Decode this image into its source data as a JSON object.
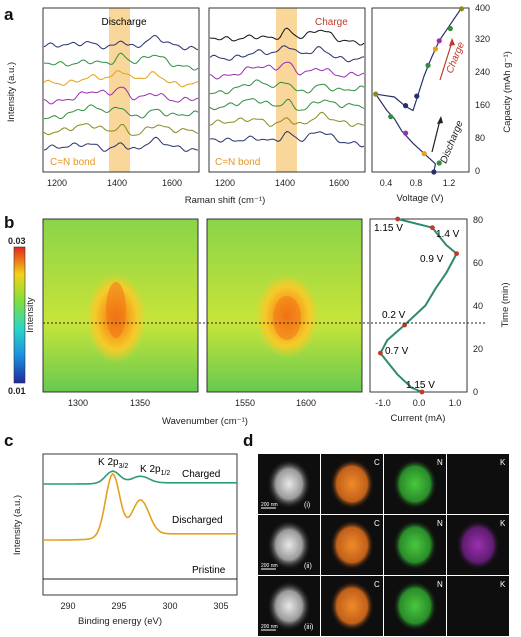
{
  "panels": {
    "a": {
      "label": "a",
      "discharge_title": "Discharge",
      "charge_title": "Charge",
      "bond_label": "C=N bond",
      "ylabel": "Intensity (a.u.)",
      "xlabel": "Raman shift (cm⁻¹)",
      "x_ticks": [
        "1200",
        "1400",
        "1600"
      ],
      "voltage_xlabel": "Voltage (V)",
      "voltage_x_ticks": [
        "0.4",
        "0.8",
        "1.2"
      ],
      "capacity_ylabel": "Capacity (mAh g⁻¹)",
      "capacity_ticks": [
        "0",
        "80",
        "160",
        "240",
        "320",
        "400"
      ],
      "charge_arrow": "Charge",
      "discharge_arrow": "Discharge"
    },
    "b": {
      "label": "b",
      "colorbar_max": "0.03",
      "colorbar_min": "0.01",
      "colorbar_label": "Intensity",
      "xlabel": "Wavenumber (cm⁻¹)",
      "left_x_ticks": [
        "1300",
        "1350"
      ],
      "right_x_ticks": [
        "1550",
        "1600"
      ],
      "current_xlabel": "Current (mA)",
      "current_x_ticks": [
        "-1.0",
        "0.0",
        "1.0"
      ],
      "time_ylabel": "Time (min)",
      "time_ticks": [
        "0",
        "20",
        "40",
        "60",
        "80"
      ],
      "voltage_annotations": [
        "1.15 V",
        "1.4 V",
        "0.9 V",
        "0.2 V",
        "0.7 V",
        "1.15 V"
      ]
    },
    "c": {
      "label": "c",
      "peak1": "K 2p",
      "peak1_sub": "3/2",
      "peak2": "K 2p",
      "peak2_sub": "1/2",
      "charged": "Charged",
      "discharged": "Discharged",
      "pristine": "Pristine",
      "ylabel": "Intensity (a.u.)",
      "xlabel": "Binding energy (eV)",
      "x_ticks": [
        "290",
        "295",
        "300",
        "305"
      ]
    },
    "d": {
      "label": "d",
      "element_labels": [
        "C",
        "N",
        "K"
      ],
      "row_labels": [
        "(i)",
        "(ii)",
        "(iii)"
      ],
      "scale_bar": "200 nm"
    }
  },
  "colors": {
    "highlight": "#f7c878",
    "bond_label": "#e69520",
    "charge": "#c0392b",
    "discharge": "#222222",
    "xps_charged": "#2e9a7e",
    "xps_discharged": "#e3a21a",
    "xps_pristine": "#222222",
    "curve": "#2e8b6e",
    "carbon_map": "#e8791a",
    "nitrogen_map": "#33b233",
    "potassium_map": "#9b2fb0"
  }
}
